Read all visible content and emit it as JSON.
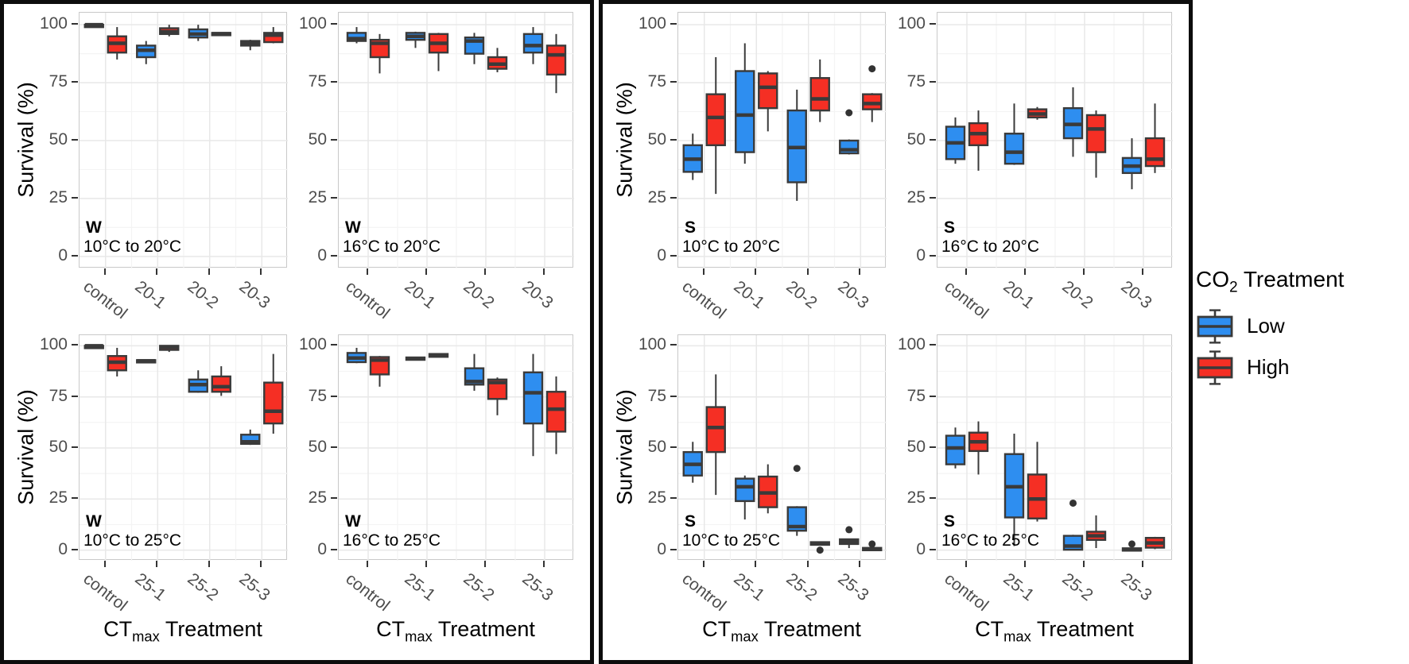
{
  "chart_data": {
    "type": "boxplot",
    "description": "Two seasonal facet groups (W = winter, S = summer), each a 2x2 grid of boxplot panels of Survival (%) by CTmax Treatment, dodged by CO2 Treatment (Low = blue, High = red).",
    "y_axis": {
      "title": "Survival (%)",
      "ticks": [
        0,
        25,
        50,
        75,
        100
      ],
      "range_shown": [
        -5,
        105
      ],
      "grid": "major and minor horizontal, light gray"
    },
    "x_axis_title": {
      "pre": "CT",
      "sub": "max",
      "post": " Treatment"
    },
    "series_colors": {
      "low": "#2E8EF0",
      "high": "#F52F24"
    },
    "box_stroke_color": "#3a3a3a",
    "legend": {
      "title_pre": "CO",
      "title_sub": "2",
      "title_post": " Treatment",
      "position": "right",
      "items": [
        {
          "key": "low",
          "label": "Low"
        },
        {
          "key": "high",
          "label": "High"
        }
      ]
    },
    "groups": [
      {
        "id": "W",
        "panels": [
          {
            "tag": "W",
            "ramp": "10°C to 20°C",
            "row": 0,
            "col": 0,
            "categories": [
              "control",
              "20-1",
              "20-2",
              "20-3"
            ],
            "boxes": [
              {
                "x": 0,
                "s": "low",
                "lo": 99,
                "q1": 99.4,
                "me": 100,
                "q3": 100,
                "hi": 100,
                "out": []
              },
              {
                "x": 0,
                "s": "high",
                "lo": 85,
                "q1": 88,
                "me": 92,
                "q3": 95,
                "hi": 99,
                "out": []
              },
              {
                "x": 1,
                "s": "low",
                "lo": 83,
                "q1": 86,
                "me": 89,
                "q3": 91,
                "hi": 93,
                "out": []
              },
              {
                "x": 1,
                "s": "high",
                "lo": 95,
                "q1": 96,
                "me": 97,
                "q3": 98.5,
                "hi": 100,
                "out": []
              },
              {
                "x": 2,
                "s": "low",
                "lo": 93,
                "q1": 94.5,
                "me": 96,
                "q3": 98,
                "hi": 100,
                "out": []
              },
              {
                "x": 2,
                "s": "high",
                "lo": 95.5,
                "q1": 95.7,
                "me": 96.1,
                "q3": 96.5,
                "hi": 96.7,
                "out": []
              },
              {
                "x": 3,
                "s": "low",
                "lo": 89,
                "q1": 91,
                "me": 92,
                "q3": 93,
                "hi": 93.5,
                "out": []
              },
              {
                "x": 3,
                "s": "high",
                "lo": 92,
                "q1": 92.5,
                "me": 95.5,
                "q3": 96.5,
                "hi": 99,
                "out": []
              }
            ]
          },
          {
            "tag": "W",
            "ramp": "16°C to 20°C",
            "row": 0,
            "col": 1,
            "categories": [
              "control",
              "20-1",
              "20-2",
              "20-3"
            ],
            "boxes": [
              {
                "x": 0,
                "s": "low",
                "lo": 92,
                "q1": 93,
                "me": 94,
                "q3": 96.5,
                "hi": 99,
                "out": []
              },
              {
                "x": 0,
                "s": "high",
                "lo": 79,
                "q1": 86,
                "me": 92,
                "q3": 93.5,
                "hi": 96,
                "out": []
              },
              {
                "x": 1,
                "s": "low",
                "lo": 90,
                "q1": 93.5,
                "me": 95,
                "q3": 96.5,
                "hi": 97,
                "out": []
              },
              {
                "x": 1,
                "s": "high",
                "lo": 80,
                "q1": 88,
                "me": 92,
                "q3": 96,
                "hi": 96.5,
                "out": []
              },
              {
                "x": 2,
                "s": "low",
                "lo": 83,
                "q1": 87.5,
                "me": 93,
                "q3": 94.5,
                "hi": 96.5,
                "out": []
              },
              {
                "x": 2,
                "s": "high",
                "lo": 79.5,
                "q1": 81,
                "me": 83,
                "q3": 86,
                "hi": 90,
                "out": []
              },
              {
                "x": 3,
                "s": "low",
                "lo": 83,
                "q1": 88,
                "me": 91,
                "q3": 96,
                "hi": 99,
                "out": []
              },
              {
                "x": 3,
                "s": "high",
                "lo": 70.5,
                "q1": 78.5,
                "me": 87,
                "q3": 91,
                "hi": 96,
                "out": []
              }
            ]
          },
          {
            "tag": "W",
            "ramp": "10°C to 25°C",
            "row": 1,
            "col": 0,
            "categories": [
              "control",
              "25-1",
              "25-2",
              "25-3"
            ],
            "boxes": [
              {
                "x": 0,
                "s": "low",
                "lo": 99,
                "q1": 99.4,
                "me": 100,
                "q3": 100,
                "hi": 100,
                "out": []
              },
              {
                "x": 0,
                "s": "high",
                "lo": 85,
                "q1": 88,
                "me": 92,
                "q3": 95,
                "hi": 99,
                "out": []
              },
              {
                "x": 1,
                "s": "low",
                "lo": 92,
                "q1": 92.2,
                "me": 92.6,
                "q3": 93,
                "hi": 93.2,
                "out": []
              },
              {
                "x": 1,
                "s": "high",
                "lo": 97,
                "q1": 98,
                "me": 99.3,
                "q3": 100,
                "hi": 100,
                "out": []
              },
              {
                "x": 2,
                "s": "low",
                "lo": 77,
                "q1": 77.5,
                "me": 81,
                "q3": 83.5,
                "hi": 88,
                "out": []
              },
              {
                "x": 2,
                "s": "high",
                "lo": 75.5,
                "q1": 77.5,
                "me": 80,
                "q3": 85,
                "hi": 90,
                "out": []
              },
              {
                "x": 3,
                "s": "low",
                "lo": 51.5,
                "q1": 52,
                "me": 53,
                "q3": 56.5,
                "hi": 59,
                "out": []
              },
              {
                "x": 3,
                "s": "high",
                "lo": 57,
                "q1": 62,
                "me": 68,
                "q3": 82,
                "hi": 96,
                "out": []
              }
            ]
          },
          {
            "tag": "W",
            "ramp": "16°C to 25°C",
            "row": 1,
            "col": 1,
            "categories": [
              "control",
              "25-1",
              "25-2",
              "25-3"
            ],
            "boxes": [
              {
                "x": 0,
                "s": "low",
                "lo": 91.5,
                "q1": 92,
                "me": 94,
                "q3": 96.5,
                "hi": 99,
                "out": []
              },
              {
                "x": 0,
                "s": "high",
                "lo": 80,
                "q1": 86,
                "me": 93,
                "q3": 94.5,
                "hi": 95,
                "out": []
              },
              {
                "x": 1,
                "s": "low",
                "lo": 92.8,
                "q1": 93.2,
                "me": 93.8,
                "q3": 94.3,
                "hi": 94.5,
                "out": []
              },
              {
                "x": 1,
                "s": "high",
                "lo": 94.3,
                "q1": 94.6,
                "me": 95.3,
                "q3": 96,
                "hi": 96.2,
                "out": []
              },
              {
                "x": 2,
                "s": "low",
                "lo": 78,
                "q1": 81,
                "me": 82.5,
                "q3": 89,
                "hi": 96,
                "out": []
              },
              {
                "x": 2,
                "s": "high",
                "lo": 66,
                "q1": 74,
                "me": 82,
                "q3": 83.5,
                "hi": 84.5,
                "out": []
              },
              {
                "x": 3,
                "s": "low",
                "lo": 46,
                "q1": 62,
                "me": 77,
                "q3": 87,
                "hi": 96,
                "out": []
              },
              {
                "x": 3,
                "s": "high",
                "lo": 47,
                "q1": 58,
                "me": 69,
                "q3": 77.5,
                "hi": 85,
                "out": []
              }
            ]
          }
        ]
      },
      {
        "id": "S",
        "panels": [
          {
            "tag": "S",
            "ramp": "10°C to 20°C",
            "row": 0,
            "col": 0,
            "categories": [
              "control",
              "20-1",
              "20-2",
              "20-3"
            ],
            "boxes": [
              {
                "x": 0,
                "s": "low",
                "lo": 33,
                "q1": 36.5,
                "me": 42,
                "q3": 48,
                "hi": 53,
                "out": []
              },
              {
                "x": 0,
                "s": "high",
                "lo": 27,
                "q1": 48,
                "me": 60,
                "q3": 70,
                "hi": 86,
                "out": []
              },
              {
                "x": 1,
                "s": "low",
                "lo": 40,
                "q1": 45,
                "me": 61,
                "q3": 80,
                "hi": 92,
                "out": []
              },
              {
                "x": 1,
                "s": "high",
                "lo": 54,
                "q1": 64,
                "me": 73,
                "q3": 79,
                "hi": 80,
                "out": []
              },
              {
                "x": 2,
                "s": "low",
                "lo": 24,
                "q1": 32,
                "me": 47,
                "q3": 63,
                "hi": 72,
                "out": []
              },
              {
                "x": 2,
                "s": "high",
                "lo": 58,
                "q1": 63,
                "me": 68,
                "q3": 77,
                "hi": 85,
                "out": []
              },
              {
                "x": 3,
                "s": "low",
                "lo": 44,
                "q1": 44.5,
                "me": 46,
                "q3": 50,
                "hi": 50.5,
                "out": [
                  62
                ]
              },
              {
                "x": 3,
                "s": "high",
                "lo": 58,
                "q1": 63.5,
                "me": 66,
                "q3": 70,
                "hi": 70.5,
                "out": [
                  81
                ]
              }
            ]
          },
          {
            "tag": "S",
            "ramp": "16°C to 20°C",
            "row": 0,
            "col": 1,
            "categories": [
              "control",
              "20-1",
              "20-2",
              "20-3"
            ],
            "boxes": [
              {
                "x": 0,
                "s": "low",
                "lo": 40,
                "q1": 42,
                "me": 49,
                "q3": 56,
                "hi": 60,
                "out": []
              },
              {
                "x": 0,
                "s": "high",
                "lo": 37,
                "q1": 48,
                "me": 53,
                "q3": 57.5,
                "hi": 63,
                "out": []
              },
              {
                "x": 1,
                "s": "low",
                "lo": 39.5,
                "q1": 40,
                "me": 45,
                "q3": 53,
                "hi": 66,
                "out": []
              },
              {
                "x": 1,
                "s": "high",
                "lo": 59,
                "q1": 60,
                "me": 61.5,
                "q3": 63.5,
                "hi": 64.5,
                "out": []
              },
              {
                "x": 2,
                "s": "low",
                "lo": 43,
                "q1": 51,
                "me": 57,
                "q3": 64,
                "hi": 73,
                "out": []
              },
              {
                "x": 2,
                "s": "high",
                "lo": 34,
                "q1": 45,
                "me": 55,
                "q3": 61,
                "hi": 63,
                "out": []
              },
              {
                "x": 3,
                "s": "low",
                "lo": 29,
                "q1": 36,
                "me": 39,
                "q3": 42.5,
                "hi": 51,
                "out": []
              },
              {
                "x": 3,
                "s": "high",
                "lo": 36,
                "q1": 39,
                "me": 42,
                "q3": 51,
                "hi": 66,
                "out": []
              }
            ]
          },
          {
            "tag": "S",
            "ramp": "10°C to 25°C",
            "row": 1,
            "col": 0,
            "categories": [
              "control",
              "25-1",
              "25-2",
              "25-3"
            ],
            "boxes": [
              {
                "x": 0,
                "s": "low",
                "lo": 33,
                "q1": 36.5,
                "me": 42,
                "q3": 48,
                "hi": 53,
                "out": []
              },
              {
                "x": 0,
                "s": "high",
                "lo": 27,
                "q1": 48,
                "me": 60,
                "q3": 70,
                "hi": 86,
                "out": []
              },
              {
                "x": 1,
                "s": "low",
                "lo": 15,
                "q1": 24,
                "me": 31,
                "q3": 35,
                "hi": 36.5,
                "out": []
              },
              {
                "x": 1,
                "s": "high",
                "lo": 18,
                "q1": 21,
                "me": 28,
                "q3": 36,
                "hi": 42,
                "out": []
              },
              {
                "x": 2,
                "s": "low",
                "lo": 7,
                "q1": 9.5,
                "me": 11.5,
                "q3": 21,
                "hi": 21.5,
                "out": [
                  40
                ]
              },
              {
                "x": 2,
                "s": "high",
                "lo": 2.3,
                "q1": 2.6,
                "me": 3.2,
                "q3": 3.9,
                "hi": 4.2,
                "out": [
                  0
                ]
              },
              {
                "x": 3,
                "s": "low",
                "lo": 1,
                "q1": 3,
                "me": 4.2,
                "q3": 5.3,
                "hi": 5.6,
                "out": [
                  10
                ]
              },
              {
                "x": 3,
                "s": "high",
                "lo": 0,
                "q1": 0.1,
                "me": 0.5,
                "q3": 1.1,
                "hi": 1.3,
                "out": [
                  3
                ]
              }
            ]
          },
          {
            "tag": "S",
            "ramp": "16°C to 25°C",
            "row": 1,
            "col": 1,
            "categories": [
              "control",
              "25-1",
              "25-2",
              "25-3"
            ],
            "boxes": [
              {
                "x": 0,
                "s": "low",
                "lo": 40,
                "q1": 42,
                "me": 50,
                "q3": 56,
                "hi": 60,
                "out": []
              },
              {
                "x": 0,
                "s": "high",
                "lo": 37,
                "q1": 48.5,
                "me": 53,
                "q3": 57.5,
                "hi": 63,
                "out": []
              },
              {
                "x": 1,
                "s": "low",
                "lo": 2,
                "q1": 16,
                "me": 31,
                "q3": 47,
                "hi": 57,
                "out": []
              },
              {
                "x": 1,
                "s": "high",
                "lo": 14,
                "q1": 15.5,
                "me": 25,
                "q3": 37,
                "hi": 53,
                "out": []
              },
              {
                "x": 2,
                "s": "low",
                "lo": 0,
                "q1": 0.2,
                "me": 2,
                "q3": 7,
                "hi": 7.5,
                "out": [
                  23
                ]
              },
              {
                "x": 2,
                "s": "high",
                "lo": 1,
                "q1": 5,
                "me": 7,
                "q3": 9,
                "hi": 17,
                "out": []
              },
              {
                "x": 3,
                "s": "low",
                "lo": 0,
                "q1": 0,
                "me": 0.3,
                "q3": 0.9,
                "hi": 1,
                "out": [
                  3
                ]
              },
              {
                "x": 3,
                "s": "high",
                "lo": 0.5,
                "q1": 1.2,
                "me": 3.5,
                "q3": 6,
                "hi": 6.5,
                "out": []
              }
            ]
          }
        ]
      }
    ]
  }
}
